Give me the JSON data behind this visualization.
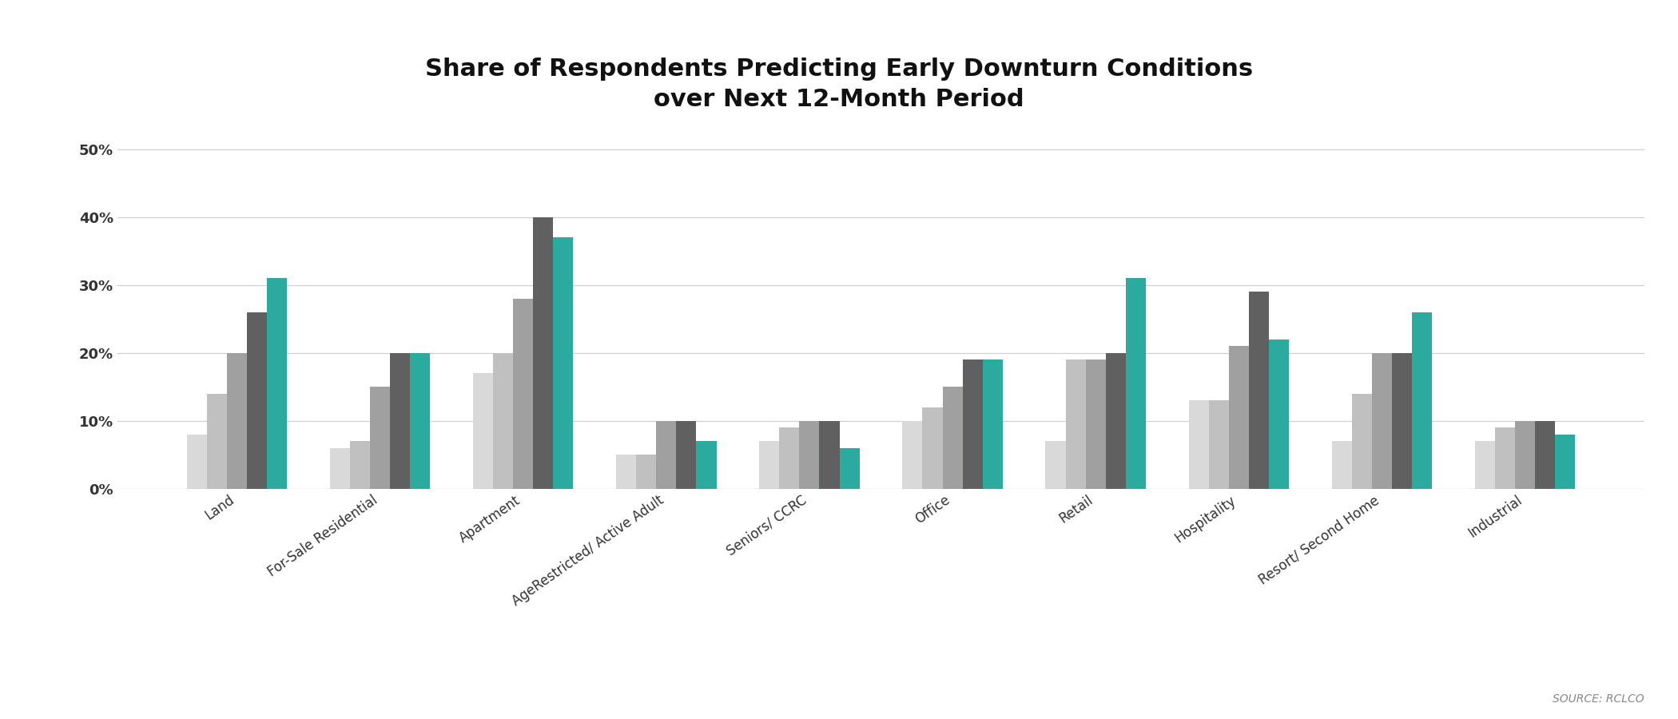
{
  "title": "Share of Respondents Predicting Early Downturn Conditions\nover Next 12-Month Period",
  "categories": [
    "Land",
    "For-Sale Residential",
    "Apartment",
    "AgeRestricted/ Active Adult",
    "Seniors/ CCRC",
    "Office",
    "Retail",
    "Hospitality",
    "Resort/ Second Home",
    "Industrial"
  ],
  "series": {
    "Mid-2015 Survey": [
      0.08,
      0.06,
      0.17,
      0.05,
      0.07,
      0.1,
      0.07,
      0.13,
      0.07,
      0.07
    ],
    "YE 2015 Survey": [
      0.14,
      0.07,
      0.2,
      0.05,
      0.09,
      0.12,
      0.19,
      0.13,
      0.14,
      0.09
    ],
    "Mid-2016 Survey": [
      0.2,
      0.15,
      0.28,
      0.1,
      0.1,
      0.15,
      0.19,
      0.21,
      0.2,
      0.1
    ],
    "YE 2016 Survey": [
      0.26,
      0.2,
      0.4,
      0.1,
      0.1,
      0.19,
      0.2,
      0.29,
      0.2,
      0.1
    ],
    "Mid-2017 Survey": [
      0.31,
      0.2,
      0.37,
      0.07,
      0.06,
      0.19,
      0.31,
      0.22,
      0.26,
      0.08
    ]
  },
  "colors": {
    "Mid-2015 Survey": "#d9d9d9",
    "YE 2015 Survey": "#c0c0c0",
    "Mid-2016 Survey": "#a0a0a0",
    "YE 2016 Survey": "#606060",
    "Mid-2017 Survey": "#2baaa0"
  },
  "ylim": [
    0,
    0.55
  ],
  "yticks": [
    0.0,
    0.1,
    0.2,
    0.3,
    0.4,
    0.5
  ],
  "background_color": "#ffffff",
  "title_fontsize": 22,
  "source_text": "SOURCE: RCLCO"
}
